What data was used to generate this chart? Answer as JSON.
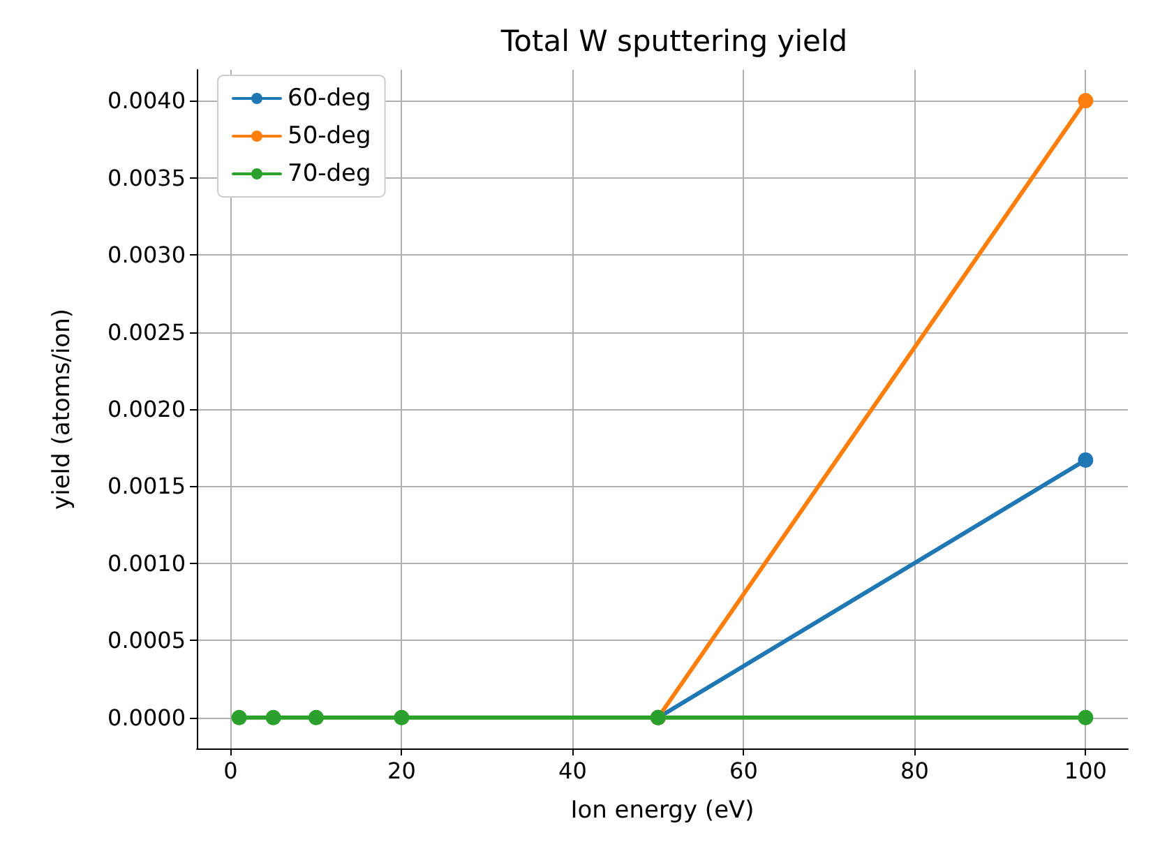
{
  "chart_data": {
    "type": "line",
    "title": "Total W sputtering yield",
    "xlabel": "Ion energy (eV)",
    "ylabel": "yield (atoms/ion)",
    "x": [
      1,
      5,
      10,
      20,
      50,
      100
    ],
    "series": [
      {
        "name": "60-deg",
        "color": "#1f77b4",
        "values": [
          null,
          null,
          null,
          null,
          0,
          0.00167
        ]
      },
      {
        "name": "50-deg",
        "color": "#ff7f0e",
        "values": [
          null,
          null,
          null,
          null,
          0,
          0.004
        ]
      },
      {
        "name": "70-deg",
        "color": "#2ca02c",
        "values": [
          0,
          0,
          0,
          0,
          0,
          0
        ]
      }
    ],
    "xlim": [
      -3.95,
      104.95
    ],
    "xticks": [
      0,
      20,
      40,
      60,
      80,
      100
    ],
    "ylim": [
      -0.0002,
      0.0042
    ],
    "yticks": [
      {
        "value": 0,
        "label": "0.0000"
      },
      {
        "value": 0.0005,
        "label": "0.0005"
      },
      {
        "value": 0.001,
        "label": "0.0010"
      },
      {
        "value": 0.0015,
        "label": "0.0015"
      },
      {
        "value": 0.002,
        "label": "0.0020"
      },
      {
        "value": 0.0025,
        "label": "0.0025"
      },
      {
        "value": 0.003,
        "label": "0.0030"
      },
      {
        "value": 0.0035,
        "label": "0.0035"
      },
      {
        "value": 0.004,
        "label": "0.0040"
      }
    ],
    "grid": true,
    "legend": "top left",
    "marker": "circle",
    "line_style": "solid"
  }
}
